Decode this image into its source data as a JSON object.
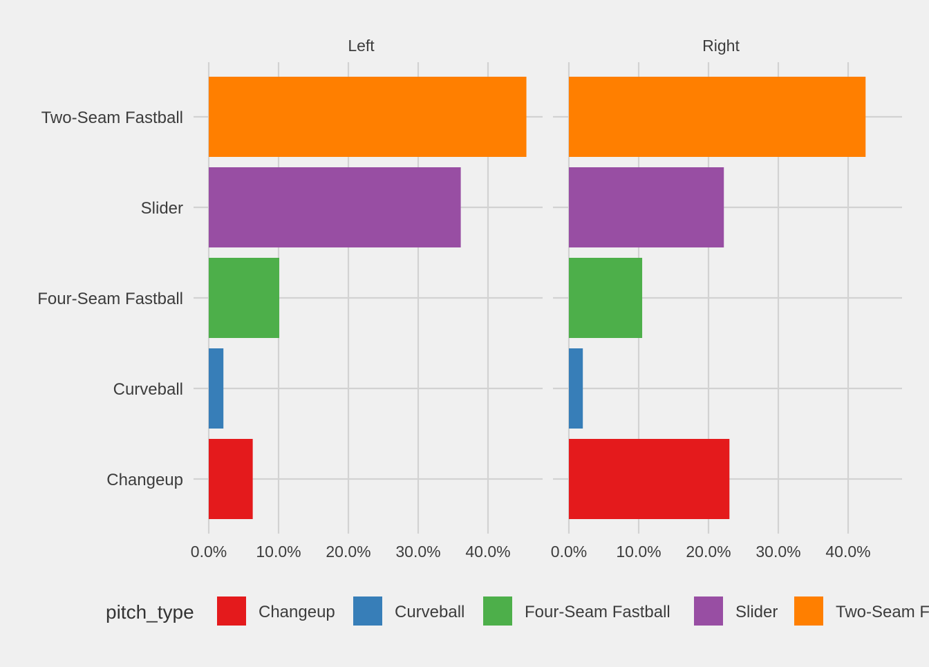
{
  "chart_data": {
    "type": "bar",
    "orientation": "horizontal",
    "facet_labels": [
      "Left",
      "Right"
    ],
    "categories": [
      "Changeup",
      "Curveball",
      "Four-Seam Fastball",
      "Slider",
      "Two-Seam Fastball"
    ],
    "xlim": [
      0,
      0.45
    ],
    "x_ticks": [
      0,
      0.1,
      0.2,
      0.3,
      0.4
    ],
    "x_tick_labels": [
      "0.0%",
      "10.0%",
      "20.0%",
      "30.0%",
      "40.0%"
    ],
    "xlabel": "",
    "ylabel": "",
    "grid": true,
    "legend": {
      "title": "pitch_type",
      "position": "bottom",
      "entries": [
        "Changeup",
        "Curveball",
        "Four-Seam Fastball",
        "Slider",
        "Two-Seam Fastball"
      ]
    },
    "colors": {
      "Changeup": "#e41a1c",
      "Curveball": "#377eb8",
      "Four-Seam Fastball": "#4daf4a",
      "Slider": "#984ea3",
      "Two-Seam Fastball": "#ff7f00"
    },
    "facets": [
      {
        "label": "Left",
        "values": {
          "Changeup": 0.063,
          "Curveball": 0.021,
          "Four-Seam Fastball": 0.101,
          "Slider": 0.361,
          "Two-Seam Fastball": 0.455
        }
      },
      {
        "label": "Right",
        "values": {
          "Changeup": 0.23,
          "Curveball": 0.02,
          "Four-Seam Fastball": 0.105,
          "Slider": 0.222,
          "Two-Seam Fastball": 0.425
        }
      }
    ]
  }
}
